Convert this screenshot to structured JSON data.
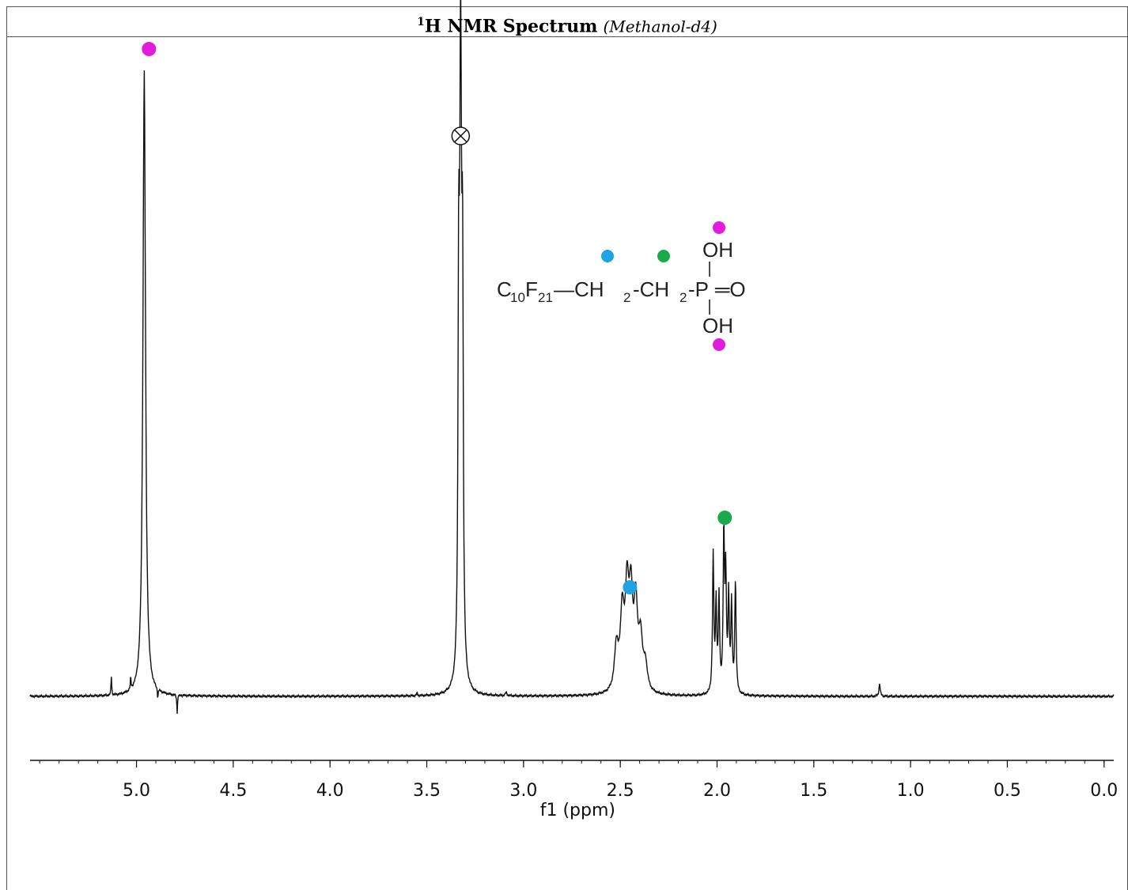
{
  "header": {
    "sup": "1",
    "title": "H NMR Spectrum",
    "solvent": "(Methanol-d4)"
  },
  "chart_data": {
    "type": "line",
    "xlabel": "f1 (ppm)",
    "x_reversed": true,
    "xlim": [
      5.55,
      -0.05
    ],
    "x_ticks": [
      "5.0",
      "4.5",
      "4.0",
      "3.5",
      "3.0",
      "2.5",
      "2.0",
      "1.5",
      "1.0",
      "0.5",
      "0.0"
    ],
    "x_tick_values": [
      5.0,
      4.5,
      4.0,
      3.5,
      3.0,
      2.5,
      2.0,
      1.5,
      1.0,
      0.5,
      0.0
    ],
    "ylim": [
      -0.05,
      1.0
    ],
    "peaks": [
      {
        "ppm": 4.96,
        "height": 1.0,
        "width": 0.008,
        "assignment": "P-OH",
        "marker_color": "#e21bdc"
      },
      {
        "ppm": 3.325,
        "height": 1.0,
        "width": 0.006,
        "assignment": "solvent",
        "marker_color": "#000000"
      },
      {
        "ppm": 3.335,
        "height": 0.55,
        "width": 0.004
      },
      {
        "ppm": 3.315,
        "height": 0.55,
        "width": 0.004
      },
      {
        "ppm": 2.49,
        "height": 0.12,
        "width": 0.012,
        "assignment": "CH2 (C10F21-CH2)",
        "marker_color": "#1fa3e3"
      },
      {
        "ppm": 2.465,
        "height": 0.15,
        "width": 0.011
      },
      {
        "ppm": 2.445,
        "height": 0.14,
        "width": 0.011
      },
      {
        "ppm": 2.42,
        "height": 0.13,
        "width": 0.011
      },
      {
        "ppm": 2.395,
        "height": 0.08,
        "width": 0.012
      },
      {
        "ppm": 2.52,
        "height": 0.07,
        "width": 0.012
      },
      {
        "ppm": 2.37,
        "height": 0.04,
        "width": 0.012
      },
      {
        "ppm": 2.02,
        "height": 0.22,
        "width": 0.004,
        "assignment": "CH2-P",
        "marker_color": "#1aaa4a"
      },
      {
        "ppm": 2.005,
        "height": 0.14,
        "width": 0.004
      },
      {
        "ppm": 1.99,
        "height": 0.15,
        "width": 0.004
      },
      {
        "ppm": 1.965,
        "height": 0.25,
        "width": 0.004
      },
      {
        "ppm": 1.955,
        "height": 0.18,
        "width": 0.004
      },
      {
        "ppm": 1.94,
        "height": 0.15,
        "width": 0.004
      },
      {
        "ppm": 1.925,
        "height": 0.14,
        "width": 0.004
      },
      {
        "ppm": 1.905,
        "height": 0.18,
        "width": 0.004
      },
      {
        "ppm": 5.13,
        "height": 0.03,
        "width": 0.002
      },
      {
        "ppm": 5.03,
        "height": 0.02,
        "width": 0.002
      },
      {
        "ppm": 1.16,
        "height": 0.02,
        "width": 0.004
      },
      {
        "ppm": 3.09,
        "height": 0.005,
        "width": 0.005
      },
      {
        "ppm": 3.55,
        "height": 0.004,
        "width": 0.003
      }
    ],
    "negative_peaks": [
      {
        "ppm": 4.89,
        "depth": 0.016
      },
      {
        "ppm": 4.79,
        "depth": 0.03
      }
    ],
    "annotations": [
      {
        "ppm": 4.96,
        "label": "pink-dot",
        "color": "#e21bdc"
      },
      {
        "ppm": 3.325,
        "label": "solvent-cross",
        "color": "#000000"
      },
      {
        "ppm": 2.45,
        "label": "blue-dot",
        "color": "#1fa3e3"
      },
      {
        "ppm": 1.96,
        "label": "green-dot",
        "color": "#1aaa4a"
      }
    ]
  },
  "molecule": {
    "prefix_c": "C",
    "sub_10": "10",
    "f": "F",
    "sub_21": "21",
    "chain1": "—CH",
    "sub_2a": "2",
    "chain2": "-CH",
    "sub_2b": "2",
    "chain3": "-P",
    "oxo": "═O",
    "oh_top": "OH",
    "oh_bottom": "OH",
    "dot_colors": {
      "pink": "#e21bdc",
      "blue": "#1fa3e3",
      "green": "#1aaa4a"
    }
  }
}
